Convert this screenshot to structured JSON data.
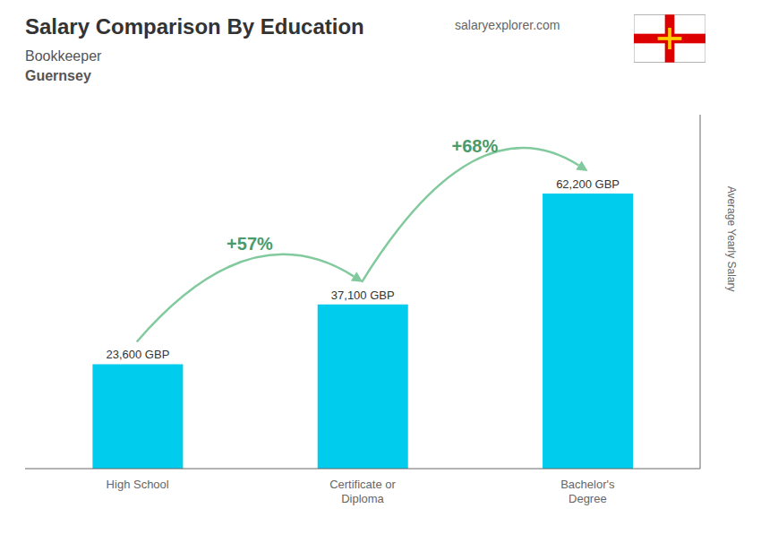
{
  "chart_data": {
    "type": "bar",
    "title": "Salary Comparison By Education",
    "subtitle": [
      "Bookkeeper",
      "Guernsey"
    ],
    "watermark": "salaryexplorer.com",
    "categories": [
      "High School",
      "Certificate or\nDiploma",
      "Bachelor's\nDegree"
    ],
    "values": [
      23600,
      37100,
      62200
    ],
    "value_labels": [
      "23,600 GBP",
      "37,100 GBP",
      "62,200 GBP"
    ],
    "data_labels": true,
    "annotations": [
      "+57%",
      "+68%"
    ],
    "ylabel": "Average Yearly Salary",
    "ylim": [
      0,
      80000
    ],
    "tick_labels": "x",
    "grid": false,
    "color": "#00ccee"
  }
}
